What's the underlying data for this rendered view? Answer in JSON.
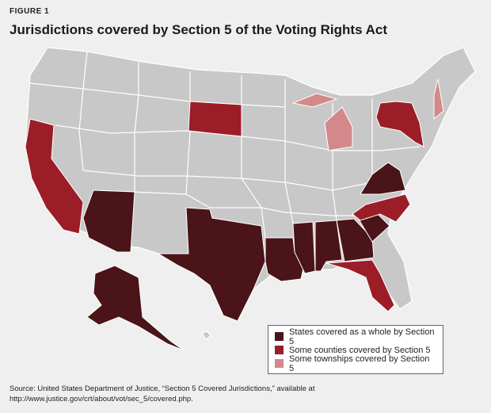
{
  "figure_label": "FIGURE 1",
  "title": "Jurisdictions covered by Section 5 of the Voting Rights Act",
  "legend": {
    "items": [
      {
        "label": "States covered as a whole by Section 5",
        "color": "#4a1418"
      },
      {
        "label": "Some counties covered by Section 5",
        "color": "#9b1d27"
      },
      {
        "label": "Some townships covered by Section 5",
        "color": "#d4888a"
      }
    ]
  },
  "source": [
    "Source: United States Department of Justice, “Section 5 Covered Jurisdictions,” available at",
    "http://www.justice.gov/crt/about/vot/sec_5/covered.php."
  ]
}
